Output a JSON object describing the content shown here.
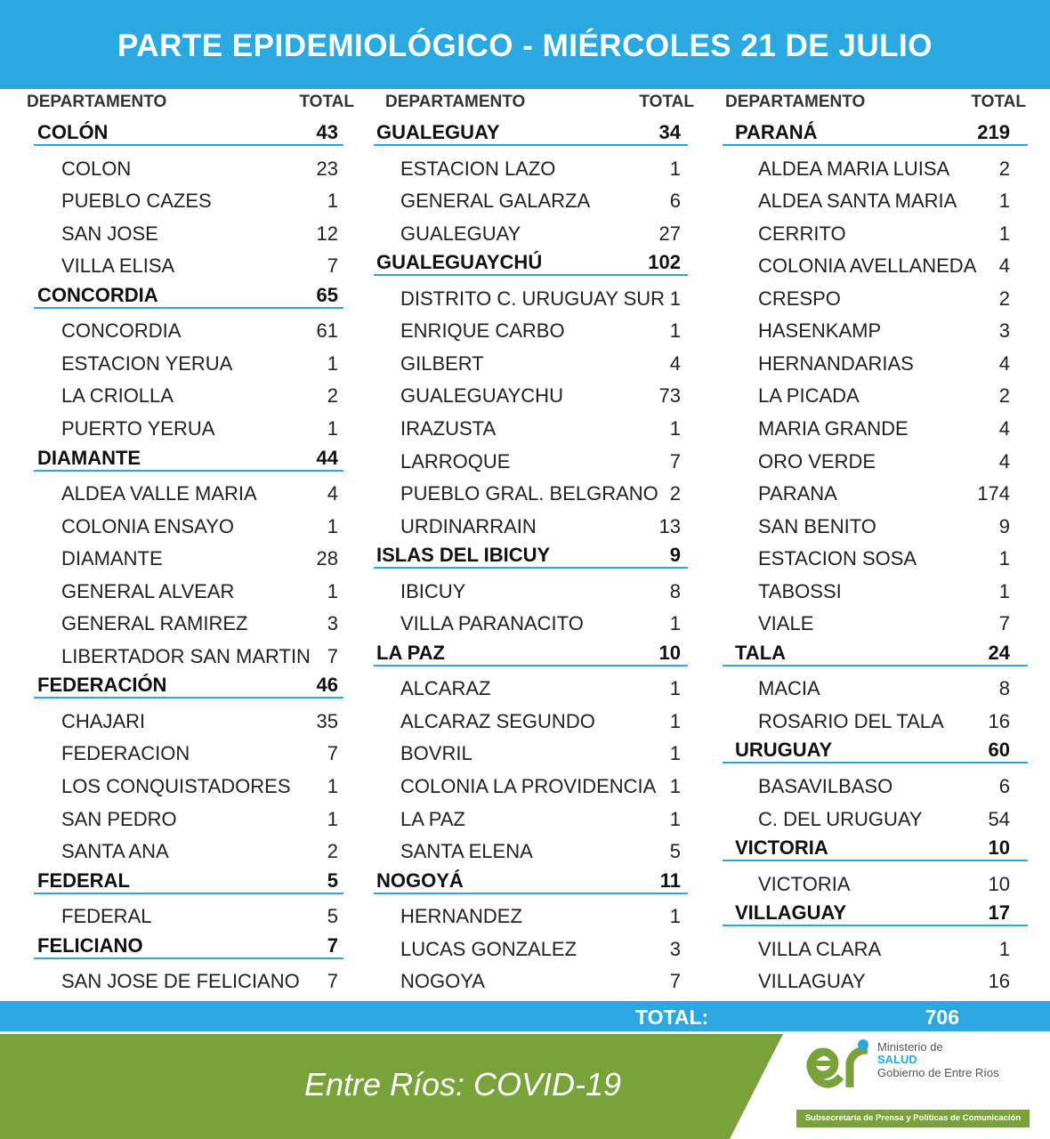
{
  "header": {
    "title": "PARTE EPIDEMIOLÓGICO - MIÉRCOLES 21 DE JULIO"
  },
  "table": {
    "column_headers": [
      "DEPARTAMENTO",
      "TOTAL"
    ],
    "columns": [
      [
        {
          "name": "COLÓN",
          "total": 43,
          "localities": [
            {
              "name": "COLON",
              "value": 23
            },
            {
              "name": "PUEBLO CAZES",
              "value": 1
            },
            {
              "name": "SAN JOSE",
              "value": 12
            },
            {
              "name": "VILLA ELISA",
              "value": 7
            }
          ]
        },
        {
          "name": "CONCORDIA",
          "total": 65,
          "localities": [
            {
              "name": "CONCORDIA",
              "value": 61
            },
            {
              "name": "ESTACION YERUA",
              "value": 1
            },
            {
              "name": "LA CRIOLLA",
              "value": 2
            },
            {
              "name": "PUERTO YERUA",
              "value": 1
            }
          ]
        },
        {
          "name": "DIAMANTE",
          "total": 44,
          "localities": [
            {
              "name": "ALDEA VALLE MARIA",
              "value": 4
            },
            {
              "name": "COLONIA ENSAYO",
              "value": 1
            },
            {
              "name": "DIAMANTE",
              "value": 28
            },
            {
              "name": "GENERAL ALVEAR",
              "value": 1
            },
            {
              "name": "GENERAL RAMIREZ",
              "value": 3
            },
            {
              "name": "LIBERTADOR SAN MARTIN",
              "value": 7
            }
          ]
        },
        {
          "name": "FEDERACIÓN",
          "total": 46,
          "localities": [
            {
              "name": "CHAJARI",
              "value": 35
            },
            {
              "name": "FEDERACION",
              "value": 7
            },
            {
              "name": "LOS CONQUISTADORES",
              "value": 1
            },
            {
              "name": "SAN PEDRO",
              "value": 1
            },
            {
              "name": "SANTA ANA",
              "value": 2
            }
          ]
        },
        {
          "name": "FEDERAL",
          "total": 5,
          "localities": [
            {
              "name": "FEDERAL",
              "value": 5
            }
          ]
        },
        {
          "name": "FELICIANO",
          "total": 7,
          "localities": [
            {
              "name": "SAN JOSE DE FELICIANO",
              "value": 7
            }
          ]
        }
      ],
      [
        {
          "name": "GUALEGUAY",
          "total": 34,
          "localities": [
            {
              "name": "ESTACION LAZO",
              "value": 1
            },
            {
              "name": "GENERAL GALARZA",
              "value": 6
            },
            {
              "name": "GUALEGUAY",
              "value": 27
            }
          ]
        },
        {
          "name": "GUALEGUAYCHÚ",
          "total": 102,
          "localities": [
            {
              "name": "DISTRITO C. URUGUAY SUR",
              "value": 1
            },
            {
              "name": "ENRIQUE CARBO",
              "value": 1
            },
            {
              "name": "GILBERT",
              "value": 4
            },
            {
              "name": "GUALEGUAYCHU",
              "value": 73
            },
            {
              "name": "IRAZUSTA",
              "value": 1
            },
            {
              "name": "LARROQUE",
              "value": 7
            },
            {
              "name": "PUEBLO GRAL. BELGRANO",
              "value": 2
            },
            {
              "name": "URDINARRAIN",
              "value": 13
            }
          ]
        },
        {
          "name": "ISLAS DEL IBICUY",
          "total": 9,
          "localities": [
            {
              "name": "IBICUY",
              "value": 8
            },
            {
              "name": "VILLA PARANACITO",
              "value": 1
            }
          ]
        },
        {
          "name": "LA PAZ",
          "total": 10,
          "localities": [
            {
              "name": "ALCARAZ",
              "value": 1
            },
            {
              "name": "ALCARAZ SEGUNDO",
              "value": 1
            },
            {
              "name": "BOVRIL",
              "value": 1
            },
            {
              "name": "COLONIA LA PROVIDENCIA",
              "value": 1
            },
            {
              "name": "LA PAZ",
              "value": 1
            },
            {
              "name": "SANTA ELENA",
              "value": 5
            }
          ]
        },
        {
          "name": "NOGOYÁ",
          "total": 11,
          "localities": [
            {
              "name": "HERNANDEZ",
              "value": 1
            },
            {
              "name": "LUCAS GONZALEZ",
              "value": 3
            },
            {
              "name": "NOGOYA",
              "value": 7
            }
          ]
        }
      ],
      [
        {
          "name": "PARANÁ",
          "total": 219,
          "localities": [
            {
              "name": "ALDEA MARIA LUISA",
              "value": 2
            },
            {
              "name": "ALDEA SANTA MARIA",
              "value": 1
            },
            {
              "name": "CERRITO",
              "value": 1
            },
            {
              "name": "COLONIA AVELLANEDA",
              "value": 4
            },
            {
              "name": "CRESPO",
              "value": 2
            },
            {
              "name": "HASENKAMP",
              "value": 3
            },
            {
              "name": "HERNANDARIAS",
              "value": 4
            },
            {
              "name": "LA PICADA",
              "value": 2
            },
            {
              "name": "MARIA GRANDE",
              "value": 4
            },
            {
              "name": "ORO VERDE",
              "value": 4
            },
            {
              "name": "PARANA",
              "value": 174
            },
            {
              "name": "SAN BENITO",
              "value": 9
            },
            {
              "name": "ESTACION SOSA",
              "value": 1
            },
            {
              "name": "TABOSSI",
              "value": 1
            },
            {
              "name": "VIALE",
              "value": 7
            }
          ]
        },
        {
          "name": "TALA",
          "total": 24,
          "localities": [
            {
              "name": "MACIA",
              "value": 8
            },
            {
              "name": "ROSARIO DEL TALA",
              "value": 16
            }
          ]
        },
        {
          "name": "URUGUAY",
          "total": 60,
          "localities": [
            {
              "name": "BASAVILBASO",
              "value": 6
            },
            {
              "name": "C. DEL URUGUAY",
              "value": 54
            }
          ]
        },
        {
          "name": "VICTORIA",
          "total": 10,
          "localities": [
            {
              "name": "VICTORIA",
              "value": 10
            }
          ]
        },
        {
          "name": "VILLAGUAY",
          "total": 17,
          "localities": [
            {
              "name": "VILLA CLARA",
              "value": 1
            },
            {
              "name": "VILLAGUAY",
              "value": 16
            }
          ]
        }
      ]
    ],
    "total": {
      "label": "TOTAL:",
      "value": 706
    }
  },
  "footer": {
    "tagline": "Entre Ríos: COVID-19",
    "logo": {
      "line1": "Ministerio de",
      "line2": "SALUD",
      "line3": "Gobierno de Entre Ríos",
      "banner": "Subsecretaría de Prensa y Políticas de Comunicación"
    }
  }
}
